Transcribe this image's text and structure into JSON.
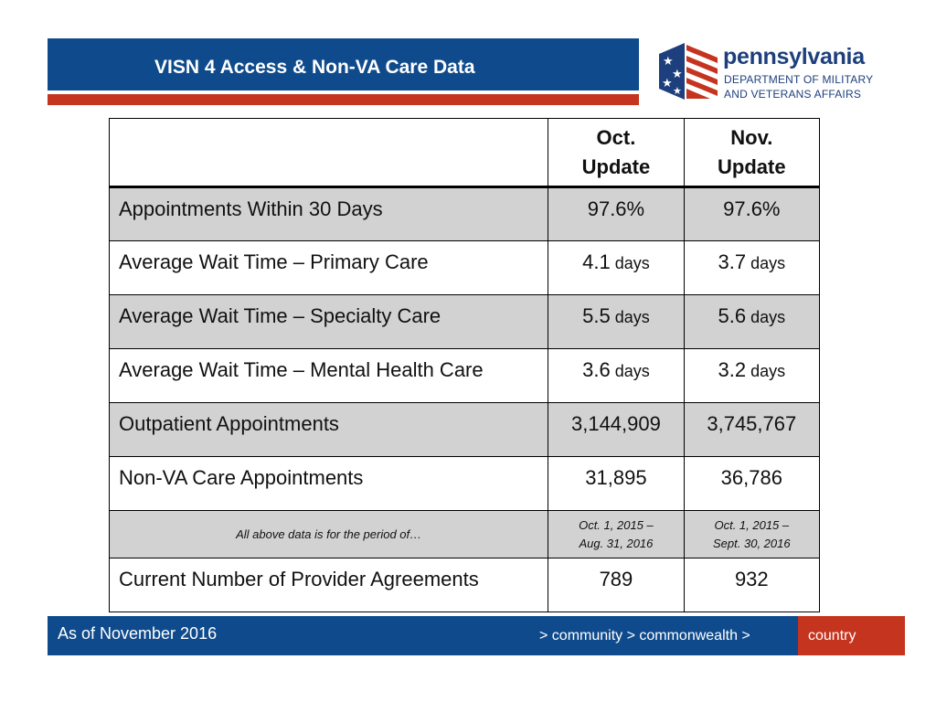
{
  "header": {
    "title": "VISN 4 Access & Non-VA Care Data"
  },
  "logo": {
    "name": "pennsylvania",
    "dept_line1": "DEPARTMENT OF MILITARY",
    "dept_line2": "AND VETERANS AFFAIRS"
  },
  "table": {
    "columns": [
      "",
      "Oct. Update",
      "Nov. Update"
    ],
    "col2_line1": "Oct.",
    "col2_line2": "Update",
    "col3_line1": "Nov.",
    "col3_line2": "Update",
    "rows": [
      {
        "label": "Appointments Within 30 Days",
        "oct": "97.6%",
        "oct_unit": "",
        "nov": "97.6%",
        "nov_unit": ""
      },
      {
        "label": "Average Wait Time – Primary Care",
        "oct": "4.1",
        "oct_unit": " days",
        "nov": "3.7",
        "nov_unit": " days"
      },
      {
        "label": "Average Wait Time – Specialty Care",
        "oct": "5.5",
        "oct_unit": " days",
        "nov": "5.6",
        "nov_unit": " days"
      },
      {
        "label": "Average Wait Time – Mental Health Care",
        "oct": "3.6",
        "oct_unit": " days",
        "nov": "3.2",
        "nov_unit": " days"
      },
      {
        "label": "Outpatient Appointments",
        "oct": "3,144,909",
        "oct_unit": "",
        "nov": "3,745,767",
        "nov_unit": ""
      },
      {
        "label": "Non-VA Care Appointments",
        "oct": "31,895",
        "oct_unit": "",
        "nov": "36,786",
        "nov_unit": ""
      }
    ],
    "period": {
      "label": "All above data is for the period of…",
      "oct_line1": "Oct. 1, 2015 –",
      "oct_line2": "Aug. 31, 2016",
      "nov_line1": "Oct. 1, 2015 –",
      "nov_line2": "Sept. 30, 2016"
    },
    "last_row": {
      "label": "Current Number of Provider Agreements",
      "oct": "789",
      "nov": "932"
    }
  },
  "footer": {
    "as_of": "As of November 2016",
    "tagline_1": "> community > commonwealth >",
    "tagline_2": "country"
  },
  "colors": {
    "navy": "#0f4b8c",
    "red": "#c5341f",
    "row_shade": "#d2d2d2"
  }
}
